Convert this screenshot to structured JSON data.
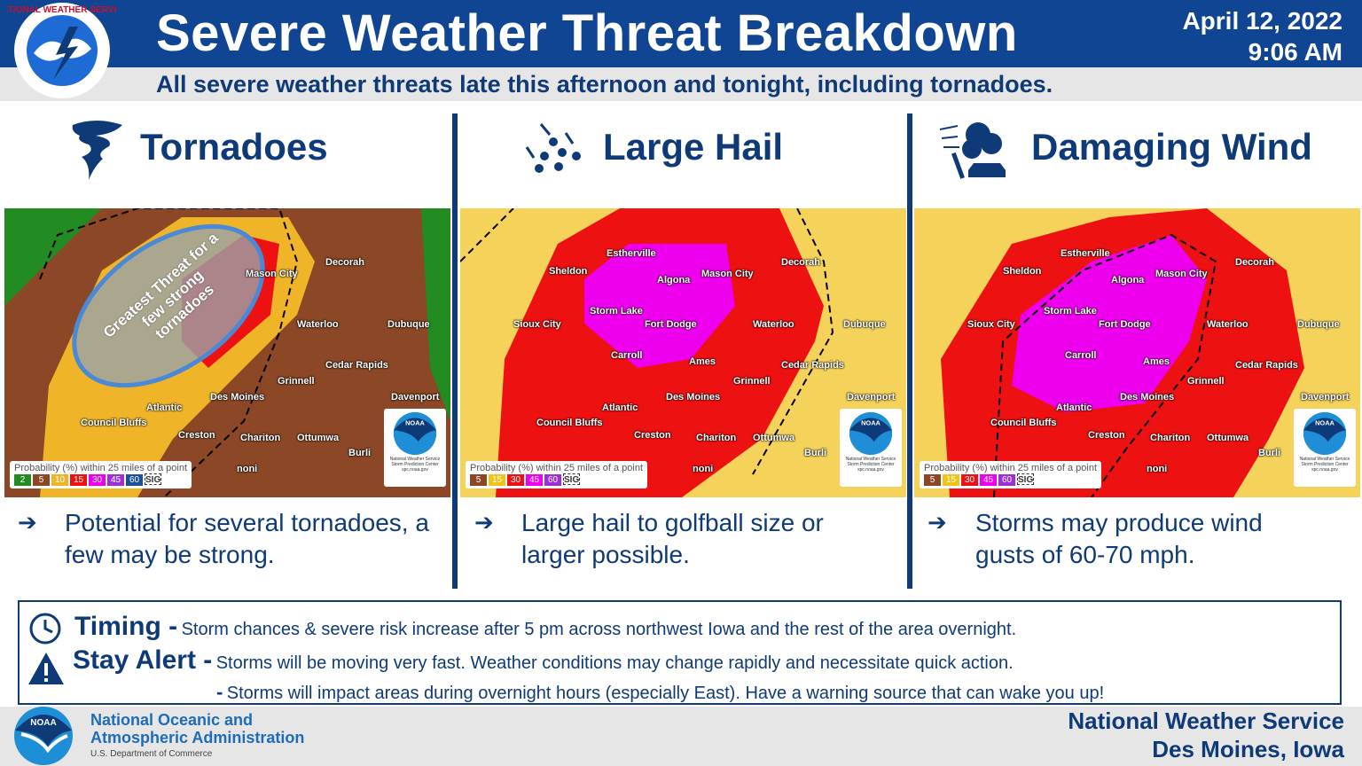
{
  "header": {
    "title": "Severe Weather Threat Breakdown",
    "subtitle": "All severe weather threats late this afternoon and tonight, including tornadoes.",
    "date": "April 12, 2022",
    "time": "9:06 AM",
    "logo_text": "NATIONAL WEATHER SERVICE"
  },
  "panels": [
    {
      "title": "Tornadoes",
      "icon": "tornado-icon",
      "bullet": "Potential for several tornadoes, a few may be strong.",
      "annotation": "Greatest Threat for a few strong tornadoes",
      "legend_title": "Probability (%) within 25 miles of a point",
      "legend": [
        {
          "v": "2",
          "c": "#228b22"
        },
        {
          "v": "5",
          "c": "#8b4726"
        },
        {
          "v": "10",
          "c": "#f0b429"
        },
        {
          "v": "15",
          "c": "#ee1111"
        },
        {
          "v": "30",
          "c": "#ee00ee"
        },
        {
          "v": "45",
          "c": "#9b30d9"
        },
        {
          "v": "60",
          "c": "#1a4f9c"
        }
      ]
    },
    {
      "title": "Large Hail",
      "icon": "hail-icon",
      "bullet": "Large hail to golfball size or larger possible.",
      "legend_title": "Probability (%) within 25 miles of a point",
      "legend": [
        {
          "v": "5",
          "c": "#8b4726"
        },
        {
          "v": "15",
          "c": "#f0c419"
        },
        {
          "v": "30",
          "c": "#ee1111"
        },
        {
          "v": "45",
          "c": "#ee00ee"
        },
        {
          "v": "60",
          "c": "#9b30d9"
        }
      ]
    },
    {
      "title": "Damaging Wind",
      "icon": "wind-damage-icon",
      "bullet": "Storms may produce wind gusts of 60-70 mph.",
      "legend_title": "Probability (%) within 25 miles of a point",
      "legend": [
        {
          "v": "5",
          "c": "#8b4726"
        },
        {
          "v": "15",
          "c": "#f0c419"
        },
        {
          "v": "30",
          "c": "#ee1111"
        },
        {
          "v": "45",
          "c": "#ee00ee"
        },
        {
          "v": "60",
          "c": "#9b30d9"
        }
      ]
    }
  ],
  "legend_sig": "SIG",
  "spc_badge": {
    "logo": "NOAA",
    "line1": "National Weather Service",
    "line2": "Storm Prediction Center",
    "line3": "spc.noaa.gov"
  },
  "cities": [
    "Estherville",
    "Sheldon",
    "Algona",
    "Mason City",
    "Decorah",
    "Sioux City",
    "Storm Lake",
    "Fort Dodge",
    "Waterloo",
    "Dubuque",
    "Carroll",
    "Ames",
    "Cedar Rapids",
    "Grinnell",
    "Des Moines",
    "Davenport",
    "Atlantic",
    "Council Bluffs",
    "Creston",
    "Chariton",
    "Ottumwa",
    "Burli",
    "noni"
  ],
  "colors": {
    "navy": "#0f3a78",
    "brand": "#0f4593",
    "slight": "#f0b429",
    "enhanced": "#ee1111",
    "moderate": "#ee00ee"
  },
  "details": {
    "timing_label": "Timing -",
    "timing": "Storm chances & severe risk increase after 5 pm across northwest Iowa and the rest of the area overnight.",
    "alert_label": "Stay Alert -",
    "alert1": "Storms will be moving very fast. Weather conditions may change rapidly and necessitate quick action.",
    "alert2_dash": "-",
    "alert2": "Storms will impact areas during overnight hours (especially East). Have a warning source that can wake you up!"
  },
  "footer": {
    "noaa_line1": "National Oceanic and",
    "noaa_line2": "Atmospheric Administration",
    "noaa_dept": "U.S. Department of Commerce",
    "noaa_logo": "NOAA",
    "nws_line1": "National Weather Service",
    "nws_line2": "Des Moines, Iowa"
  }
}
